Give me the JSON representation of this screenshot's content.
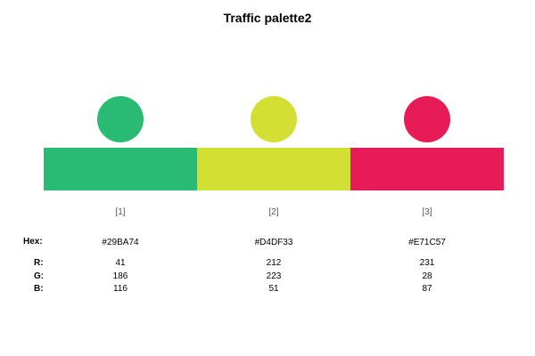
{
  "title": "Traffic palette2",
  "row_labels": {
    "hex": "Hex:",
    "r": "R:",
    "g": "G:",
    "b": "B:"
  },
  "swatches": [
    {
      "index": "[1]",
      "hex": "#29BA74",
      "r": "41",
      "g": "186",
      "b": "116",
      "color": "#29BA74"
    },
    {
      "index": "[2]",
      "hex": "#D4DF33",
      "r": "212",
      "g": "223",
      "b": "51",
      "color": "#D4DF33"
    },
    {
      "index": "[3]",
      "hex": "#E71C57",
      "r": "231",
      "g": "28",
      "b": "87",
      "color": "#E71C57"
    }
  ]
}
